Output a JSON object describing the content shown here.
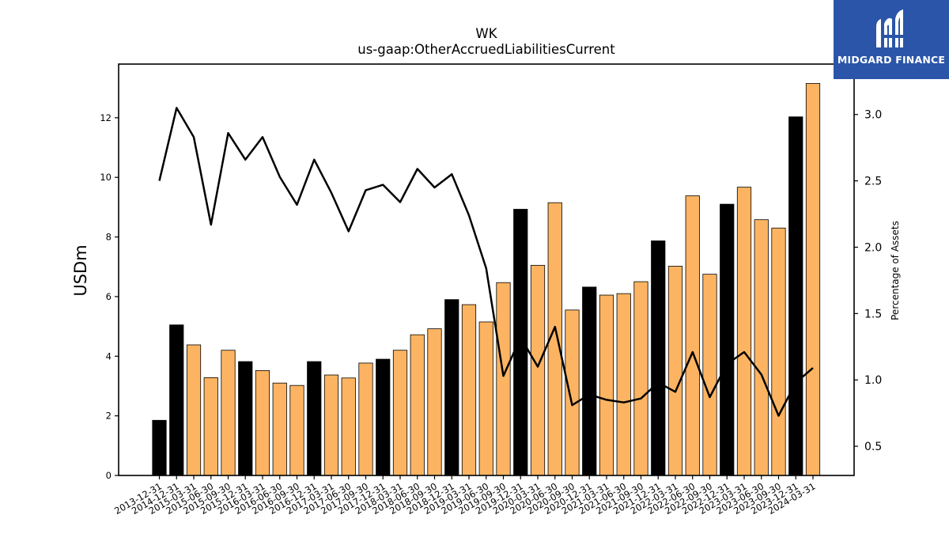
{
  "chart_data": {
    "type": "bar",
    "title": "WK",
    "subtitle": "us-gaap:OtherAccruedLiabilitiesCurrent",
    "ylabel": "USDm",
    "y2label": "Percentage of Assets",
    "ylim": [
      0,
      13.8
    ],
    "y2lim": [
      0.28,
      3.38
    ],
    "yticks": [
      "0",
      "2",
      "4",
      "6",
      "8",
      "10",
      "12"
    ],
    "y2ticks": [
      "0.5",
      "1.0",
      "1.5",
      "2.0",
      "2.5",
      "3.0"
    ],
    "grid": false,
    "colors": {
      "annual": "#000000",
      "quarterly": "#fdb462",
      "line": "#000000"
    },
    "categories": [
      "2013-12-31",
      "2014-12-31",
      "2015-03-31",
      "2015-06-30",
      "2015-09-30",
      "2015-12-31",
      "2016-03-31",
      "2016-06-30",
      "2016-09-30",
      "2016-12-31",
      "2017-03-31",
      "2017-06-30",
      "2017-09-30",
      "2017-12-31",
      "2018-03-31",
      "2018-06-30",
      "2018-09-30",
      "2018-12-31",
      "2019-03-31",
      "2019-06-30",
      "2019-09-30",
      "2019-12-31",
      "2020-03-31",
      "2020-06-30",
      "2020-09-30",
      "2020-12-31",
      "2021-03-31",
      "2021-06-30",
      "2021-09-30",
      "2021-12-31",
      "2022-03-31",
      "2022-06-30",
      "2022-09-30",
      "2022-12-31",
      "2023-03-31",
      "2023-06-30",
      "2023-09-30",
      "2023-12-31",
      "2024-03-31"
    ],
    "series": [
      {
        "kind": "bar",
        "values": [
          1.85,
          5.05,
          4.38,
          3.28,
          4.2,
          3.82,
          3.52,
          3.1,
          3.02,
          3.82,
          3.37,
          3.27,
          3.77,
          3.9,
          4.2,
          4.72,
          4.92,
          5.9,
          5.73,
          5.15,
          6.47,
          8.93,
          7.05,
          9.15,
          5.55,
          6.32,
          6.05,
          6.1,
          6.5,
          7.87,
          7.02,
          9.38,
          6.75,
          9.1,
          9.67,
          8.58,
          8.3,
          12.03,
          13.15
        ],
        "annual": [
          true,
          true,
          false,
          false,
          false,
          true,
          false,
          false,
          false,
          true,
          false,
          false,
          false,
          true,
          false,
          false,
          false,
          true,
          false,
          false,
          false,
          true,
          false,
          false,
          false,
          true,
          false,
          false,
          false,
          true,
          false,
          false,
          false,
          true,
          false,
          false,
          false,
          true,
          false
        ]
      },
      {
        "kind": "line",
        "axis": "right",
        "values": [
          2.5,
          3.05,
          2.83,
          2.17,
          2.86,
          2.66,
          2.83,
          2.53,
          2.32,
          2.66,
          2.41,
          2.12,
          2.43,
          2.47,
          2.34,
          2.59,
          2.45,
          2.55,
          2.24,
          1.84,
          1.03,
          1.32,
          1.1,
          1.4,
          0.81,
          0.89,
          0.85,
          0.83,
          0.86,
          0.98,
          0.91,
          1.21,
          0.87,
          1.12,
          1.21,
          1.04,
          0.73,
          0.98,
          1.09
        ]
      }
    ]
  },
  "logo": {
    "text": "MIDGARD FINANCE",
    "icon": "midgard-logo-icon"
  }
}
